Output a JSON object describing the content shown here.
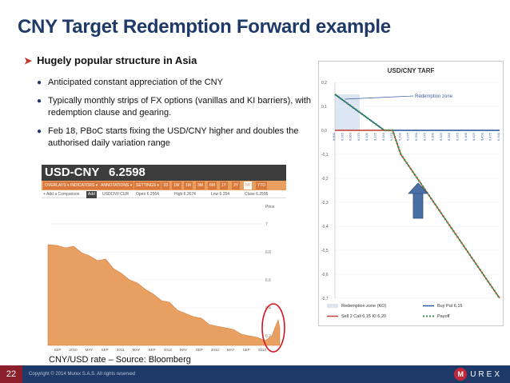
{
  "title": "CNY Target Redemption Forward example",
  "section": "Hugely popular structure in Asia",
  "bullets": [
    "Anticipated constant appreciation of the CNY",
    "Typically monthly strips of FX options (vanillas and KI barriers), with redemption clause and gearing.",
    "Feb 18, PBoC starts fixing the USD/CNY higher and doubles the authorised daily variation range"
  ],
  "bloomberg": {
    "ticker": "USD-CNY",
    "price": "6.2598",
    "toolbar": [
      "OVERLAYS ▾",
      "INDICATORS ▾",
      "ANNOTATIONS ▾",
      "SETTINGS ▾",
      "1D",
      "1W",
      "1M",
      "3M",
      "6M",
      "1Y",
      "3Y",
      "5Y",
      "YTD"
    ],
    "info": {
      "add": "+ Add a Comparison",
      "add_btn": "Add",
      "symbol": "USDCNY:CUR",
      "open": "Open 6.2564",
      "high": "High 6.2674",
      "low": "Low 6.254",
      "close": "Close 6.2595"
    },
    "y_title": "Price",
    "y_ticks": [
      "7",
      "6.8",
      "6.6",
      "6.4",
      "6.2"
    ],
    "x_ticks": [
      "SEP",
      "2010",
      "MAY",
      "SEP",
      "2011",
      "MAY",
      "SEP",
      "2012",
      "MAY",
      "SEP",
      "2013",
      "MAY",
      "SEP",
      "2014"
    ]
  },
  "caption": "CNY/USD rate – Source: Bloomberg",
  "chart_data": {
    "type": "line",
    "title": "USD/CNY TARF",
    "annotation": "Redemption zone",
    "y_ticks": [
      "0,2",
      "0,1",
      "0,0",
      "-0,1",
      "-0,2",
      "-0,3",
      "-0,4",
      "-0,5",
      "-0,6",
      "-0,7"
    ],
    "ylim": [
      -0.7,
      0.2
    ],
    "x": [
      6.0,
      6.025,
      6.05,
      6.075,
      6.1,
      6.125,
      6.15,
      6.175,
      6.2,
      6.225,
      6.25,
      6.275,
      6.3,
      6.325,
      6.35,
      6.375,
      6.4,
      6.425,
      6.45,
      6.475,
      6.5
    ],
    "x_tick_labels": [
      "6,000",
      "6,025",
      "6,050",
      "6,075",
      "6,100",
      "6,125",
      "6,150",
      "6,175",
      "6,200",
      "6,225",
      "6,250",
      "6,275",
      "6,300",
      "6,325",
      "6,350",
      "6,375",
      "6,400",
      "6,425",
      "6,450",
      "6,475",
      "6,500"
    ],
    "series": [
      {
        "name": "Buy Put 6,15",
        "values": [
          0.15,
          0.125,
          0.1,
          0.075,
          0.05,
          0.025,
          0.0,
          0.0,
          0.0,
          0.0,
          0.0,
          0.0,
          0.0,
          0.0,
          0.0,
          0.0,
          0.0,
          0.0,
          0.0,
          0.0,
          0.0
        ]
      },
      {
        "name": "Sell 2 Call 6,15 KI 6,20",
        "values": [
          0.0,
          0.0,
          0.0,
          0.0,
          0.0,
          0.0,
          0.0,
          0.0,
          -0.1,
          -0.15,
          -0.2,
          -0.25,
          -0.3,
          -0.35,
          -0.4,
          -0.45,
          -0.5,
          -0.55,
          -0.6,
          -0.65,
          -0.7
        ]
      },
      {
        "name": "Payoff",
        "values": [
          0.15,
          0.125,
          0.1,
          0.075,
          0.05,
          0.025,
          0.0,
          0.0,
          -0.1,
          -0.15,
          -0.2,
          -0.25,
          -0.3,
          -0.35,
          -0.4,
          -0.45,
          -0.5,
          -0.55,
          -0.6,
          -0.65,
          -0.7
        ]
      }
    ],
    "legend": [
      {
        "label": "Redemption zone (KO)",
        "color": "#dce6f2"
      },
      {
        "label": "Buy Put 6,15",
        "color": "#1f4e9a"
      },
      {
        "label": "Sell 2 Call 6,15 KI 6,20",
        "color": "#c0392b"
      },
      {
        "label": "Payoff",
        "color": "#3a9a4a"
      }
    ],
    "legend_position": "bottom"
  },
  "footer": {
    "page_number": "22",
    "copyright": "Copyright © 2014 Murex S.A.S. All rights reserved",
    "logo_mark": "M",
    "logo_word": "UREX"
  },
  "colors": {
    "title": "#1f3a68",
    "footer": "#1f3a68",
    "page_badge": "#8b1e2a",
    "highlight_circle": "#d4141c",
    "up_arrow": "#4a6fa5",
    "area": "#e8a062"
  }
}
